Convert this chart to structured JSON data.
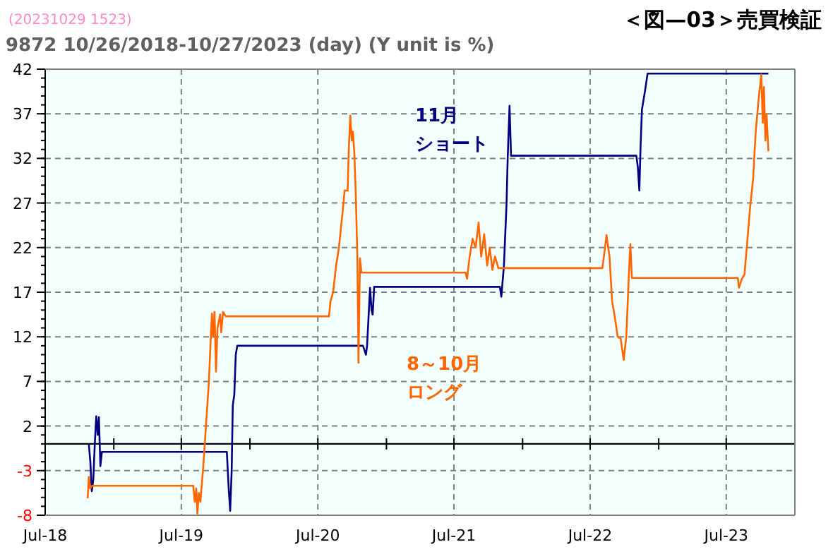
{
  "chart_data": {
    "type": "line",
    "title": "＜図—03＞売買検証",
    "subtitle": "9872 10/26/2018-10/27/2023 (day)  (Y unit is %)",
    "annotations": [
      "(20231029 1523)"
    ],
    "xlim": [
      "2018-07-01",
      "2024-01-01"
    ],
    "xticks": [
      {
        "value": "2018-07-01",
        "label": "Jul-18"
      },
      {
        "value": "2019-01-01",
        "label": null
      },
      {
        "value": "2019-07-01",
        "label": "Jul-19"
      },
      {
        "value": "2020-01-01",
        "label": null
      },
      {
        "value": "2020-07-01",
        "label": "Jul-20"
      },
      {
        "value": "2021-01-01",
        "label": null
      },
      {
        "value": "2021-07-01",
        "label": "Jul-21"
      },
      {
        "value": "2022-01-01",
        "label": null
      },
      {
        "value": "2022-07-01",
        "label": "Jul-22"
      },
      {
        "value": "2023-01-01",
        "label": null
      },
      {
        "value": "2023-07-01",
        "label": "Jul-23"
      },
      {
        "value": "2024-01-01",
        "label": null
      }
    ],
    "ylim": [
      -8,
      42
    ],
    "yticks": [
      -8,
      -3,
      2,
      7,
      12,
      17,
      22,
      27,
      32,
      37,
      42
    ],
    "grid": true,
    "series": [
      {
        "name": "11月ショート",
        "color": "#000080",
        "x": [
          "2018-10-26",
          "2018-10-30",
          "2018-11-03",
          "2018-11-07",
          "2018-11-11",
          "2018-11-15",
          "2018-11-19",
          "2018-11-22",
          "2018-11-26",
          "2018-11-30",
          "2019-10-31",
          "2019-11-05",
          "2019-11-09",
          "2019-11-13",
          "2019-11-16",
          "2019-11-20",
          "2019-11-24",
          "2019-11-28",
          "2020-10-30",
          "2020-11-03",
          "2020-11-07",
          "2020-11-10",
          "2020-11-18",
          "2020-11-22",
          "2020-11-25",
          "2020-11-29",
          "2021-11-01",
          "2021-11-05",
          "2021-11-12",
          "2021-11-19",
          "2021-11-22",
          "2021-11-27",
          "2021-12-01",
          "2022-11-02",
          "2022-11-06",
          "2022-11-10",
          "2022-11-13",
          "2022-11-17",
          "2022-11-25",
          "2022-12-02",
          "2023-10-22"
        ],
        "values": [
          0,
          -2,
          -5.3,
          -4,
          0,
          3.1,
          1,
          3,
          -2.5,
          -0.9,
          -0.9,
          -5,
          -7.5,
          -3,
          4.3,
          5.5,
          10,
          11,
          11,
          10.5,
          10,
          11,
          17.5,
          15,
          14.5,
          17.6,
          17.6,
          16.5,
          20,
          27,
          32,
          37.9,
          32.3,
          32.3,
          31,
          28.4,
          33,
          37.5,
          39.5,
          41.5,
          41.5
        ]
      },
      {
        "name": "8～10月ロング",
        "color": "#ff6600",
        "x": [
          "2018-10-23",
          "2018-10-26",
          "2018-10-30",
          "2018-11-03",
          "2019-08-02",
          "2019-08-06",
          "2019-08-10",
          "2019-08-13",
          "2019-08-17",
          "2019-08-21",
          "2019-08-25",
          "2019-08-28",
          "2019-09-02",
          "2019-09-05",
          "2019-09-09",
          "2019-09-13",
          "2019-09-17",
          "2019-09-21",
          "2019-09-24",
          "2019-09-28",
          "2019-10-02",
          "2019-10-06",
          "2019-10-13",
          "2019-10-16",
          "2019-10-21",
          "2019-10-28",
          "2020-07-31",
          "2020-08-04",
          "2020-08-11",
          "2020-08-19",
          "2020-08-26",
          "2020-09-03",
          "2020-09-11",
          "2020-09-19",
          "2020-09-22",
          "2020-09-26",
          "2020-09-30",
          "2020-10-03",
          "2020-10-07",
          "2020-10-11",
          "2020-10-15",
          "2020-10-18",
          "2020-10-22",
          "2020-10-26",
          "2021-08-01",
          "2021-08-05",
          "2021-08-12",
          "2021-08-20",
          "2021-08-28",
          "2021-09-05",
          "2021-09-12",
          "2021-09-20",
          "2021-09-28",
          "2021-10-05",
          "2021-10-12",
          "2021-10-19",
          "2021-10-28",
          "2022-08-03",
          "2022-08-07",
          "2022-08-14",
          "2022-08-22",
          "2022-08-29",
          "2022-09-06",
          "2022-09-13",
          "2022-09-21",
          "2022-09-29",
          "2022-10-06",
          "2022-10-14",
          "2022-10-17",
          "2022-10-21",
          "2023-08-01",
          "2023-08-04",
          "2023-08-12",
          "2023-08-19",
          "2023-08-27",
          "2023-09-03",
          "2023-09-11",
          "2023-09-18",
          "2023-09-26",
          "2023-10-03",
          "2023-10-07",
          "2023-10-10",
          "2023-10-14",
          "2023-10-17",
          "2023-10-22"
        ],
        "values": [
          -6.1,
          -3.7,
          -5,
          -4.7,
          -4.7,
          -6.5,
          -5,
          -7.8,
          -5.5,
          -6.5,
          -4.5,
          -3,
          0,
          2,
          4.5,
          7,
          11,
          14.6,
          12,
          14.8,
          8.1,
          13,
          14.5,
          12.5,
          14.8,
          14.3,
          14.3,
          16,
          17,
          20,
          21.8,
          25,
          28.4,
          28.4,
          33,
          36.8,
          34,
          35,
          32.5,
          27.6,
          20.8,
          9.1,
          20.8,
          19.2,
          19.2,
          18.5,
          21,
          23,
          22,
          24.8,
          21,
          23.5,
          20,
          22,
          19.5,
          21,
          19.7,
          19.7,
          21,
          23.4,
          21,
          16,
          14,
          12,
          11.8,
          9.4,
          12,
          20,
          22.4,
          18.6,
          18.6,
          17.5,
          18.5,
          19,
          23,
          26.5,
          29.7,
          35,
          38.7,
          41.4,
          36,
          40,
          34,
          37,
          32.8
        ]
      }
    ]
  }
}
